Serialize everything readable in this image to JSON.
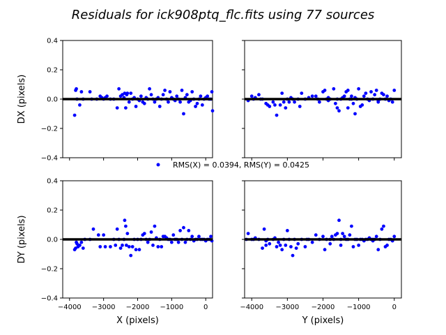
{
  "figure": {
    "title": "Residuals for ick908ptq_flc.fits using 77 sources",
    "legend_label": "RMS(X) = 0.0394, RMS(Y) = 0.0425",
    "marker_color": "#0000ff",
    "zero_line_color": "#000000"
  },
  "chart_data": [
    {
      "type": "scatter",
      "panel": "top-left",
      "xlabel": "",
      "ylabel": "DX (pixels)",
      "xlim": [
        -4200,
        200
      ],
      "ylim": [
        -0.4,
        0.4
      ],
      "xticks": [
        -4000,
        -3000,
        -2000,
        -1000,
        0
      ],
      "xtick_labels": [
        "",
        "",
        "",
        "",
        ""
      ],
      "yticks": [
        -0.4,
        -0.2,
        0.0,
        0.2,
        0.4
      ],
      "ytick_labels": [
        "−0.4",
        "−0.2",
        "0.0",
        "0.2",
        "0.4"
      ],
      "x": [
        -3850,
        -3820,
        -3800,
        -3780,
        -3700,
        -3650,
        -3600,
        -3400,
        -3350,
        -3200,
        -3100,
        -3050,
        -3000,
        -2950,
        -2900,
        -2800,
        -2700,
        -2600,
        -2550,
        -2500,
        -2450,
        -2400,
        -2380,
        -2350,
        -2320,
        -2300,
        -2250,
        -2200,
        -2150,
        -2100,
        -2050,
        -2000,
        -1950,
        -1900,
        -1850,
        -1800,
        -1750,
        -1700,
        -1650,
        -1600,
        -1550,
        -1500,
        -1450,
        -1400,
        -1350,
        -1300,
        -1250,
        -1200,
        -1150,
        -1100,
        -1050,
        -1000,
        -950,
        -900,
        -850,
        -800,
        -750,
        -700,
        -650,
        -600,
        -550,
        -500,
        -450,
        -400,
        -350,
        -300,
        -250,
        -200,
        -150,
        -100,
        -50,
        0,
        50,
        100,
        150,
        180,
        200
      ],
      "y": [
        -0.11,
        0.06,
        0.07,
        0.0,
        -0.04,
        0.05,
        0.0,
        0.05,
        0.0,
        0.0,
        0.02,
        0.01,
        0.0,
        0.01,
        0.02,
        0.0,
        0.0,
        -0.06,
        0.07,
        0.02,
        0.03,
        0.01,
        0.04,
        -0.06,
        0.03,
        0.04,
        -0.02,
        0.04,
        0.0,
        0.01,
        -0.05,
        0.0,
        -0.01,
        0.02,
        -0.02,
        -0.03,
        0.01,
        0.0,
        0.07,
        0.03,
        0.0,
        -0.02,
        0.0,
        0.01,
        -0.05,
        0.0,
        0.03,
        0.06,
        0.0,
        -0.02,
        0.05,
        0.01,
        0.0,
        -0.01,
        0.02,
        0.0,
        -0.02,
        0.06,
        -0.1,
        0.01,
        0.03,
        -0.02,
        -0.01,
        0.05,
        0.0,
        -0.05,
        -0.03,
        0.0,
        0.02,
        -0.04,
        0.0,
        0.01,
        0.02,
        0.0,
        0.0,
        0.05,
        -0.08
      ]
    },
    {
      "type": "scatter",
      "panel": "top-right",
      "xlabel": "",
      "ylabel": "",
      "xlim": [
        -4200,
        200
      ],
      "ylim": [
        -0.4,
        0.4
      ],
      "xticks": [
        -4000,
        -3000,
        -2000,
        -1000,
        0
      ],
      "xtick_labels": [
        "",
        "",
        "",
        "",
        ""
      ],
      "yticks": [
        -0.4,
        -0.2,
        0.0,
        0.2,
        0.4
      ],
      "ytick_labels": [
        "",
        "",
        "",
        "",
        ""
      ],
      "x": [
        -4100,
        -4000,
        -3950,
        -3900,
        -3800,
        -3750,
        -3600,
        -3550,
        -3500,
        -3400,
        -3300,
        -3200,
        -3150,
        -3100,
        -3050,
        -3000,
        -2950,
        -2900,
        -2850,
        -2800,
        -2700,
        -2600,
        -2500,
        -2400,
        -2300,
        -2200,
        -2100,
        -2000,
        -1950,
        -1900,
        -1850,
        -1800,
        -1700,
        -1650,
        -1600,
        -1550,
        -1500,
        -1450,
        -1400,
        -1350,
        -1300,
        -1250,
        -1200,
        -1150,
        -1100,
        -1050,
        -1000,
        -950,
        -900,
        -850,
        -800,
        -750,
        -700,
        -650,
        -600,
        -550,
        -500,
        -450,
        -400,
        -350,
        -300,
        -250,
        -200,
        -150,
        -100,
        -50,
        0,
        -1300,
        -2150,
        -1850,
        -2650,
        -3700,
        -3350,
        -1600,
        -450,
        -1100,
        -1200
      ],
      "y": [
        -0.01,
        0.02,
        0.0,
        0.01,
        0.03,
        0.0,
        -0.03,
        -0.04,
        -0.05,
        -0.02,
        -0.11,
        -0.04,
        0.04,
        -0.02,
        -0.06,
        0.0,
        -0.02,
        0.01,
        0.0,
        -0.02,
        0.0,
        0.04,
        0.0,
        0.01,
        0.02,
        0.02,
        -0.02,
        0.05,
        0.06,
        0.0,
        -0.01,
        0.0,
        0.07,
        -0.03,
        -0.06,
        -0.08,
        0.0,
        0.01,
        0.02,
        0.05,
        0.06,
        0.0,
        0.02,
        -0.03,
        -0.1,
        0.0,
        0.07,
        -0.05,
        -0.04,
        0.02,
        0.04,
        0.0,
        -0.01,
        0.05,
        0.0,
        0.03,
        0.06,
        -0.01,
        0.0,
        0.04,
        0.03,
        0.0,
        0.02,
        -0.01,
        0.0,
        -0.02,
        0.06,
        -0.06,
        0.0,
        0.01,
        -0.05,
        0.0,
        -0.04,
        0.0,
        -0.02,
        0.01,
        0.0
      ]
    },
    {
      "type": "scatter",
      "panel": "bottom-left",
      "xlabel": "X (pixels)",
      "ylabel": "DY (pixels)",
      "xlim": [
        -4200,
        200
      ],
      "ylim": [
        -0.4,
        0.4
      ],
      "xticks": [
        -4000,
        -3000,
        -2000,
        -1000,
        0
      ],
      "xtick_labels": [
        "−4000",
        "−3000",
        "−2000",
        "−1000",
        "0"
      ],
      "yticks": [
        -0.4,
        -0.2,
        0.0,
        0.2,
        0.4
      ],
      "ytick_labels": [
        "−0.4",
        "−0.2",
        "0.0",
        "0.2",
        "0.4"
      ],
      "x": [
        -3850,
        -3820,
        -3800,
        -3780,
        -3750,
        -3700,
        -3650,
        -3600,
        -3550,
        -3400,
        -3300,
        -3150,
        -3100,
        -3000,
        -2950,
        -2800,
        -2700,
        -2650,
        -2600,
        -2550,
        -2500,
        -2450,
        -2400,
        -2380,
        -2350,
        -2330,
        -2300,
        -2250,
        -2200,
        -2150,
        -2100,
        -2050,
        -2000,
        -1950,
        -1900,
        -1850,
        -1800,
        -1750,
        -1700,
        -1650,
        -1600,
        -1550,
        -1500,
        -1450,
        -1400,
        -1350,
        -1300,
        -1250,
        -1200,
        -1150,
        -1100,
        -1050,
        -1000,
        -950,
        -900,
        -850,
        -800,
        -750,
        -700,
        -650,
        -600,
        -550,
        -500,
        -450,
        -400,
        -350,
        -300,
        -250,
        -200,
        -150,
        -100,
        -50,
        0,
        50,
        100,
        150,
        180
      ],
      "y": [
        -0.07,
        -0.06,
        -0.02,
        -0.03,
        -0.05,
        -0.04,
        -0.02,
        -0.06,
        0.0,
        0.0,
        0.07,
        0.03,
        -0.05,
        0.03,
        -0.05,
        -0.05,
        0.0,
        -0.04,
        0.07,
        0.0,
        -0.06,
        -0.04,
        0.0,
        0.13,
        0.09,
        -0.04,
        0.04,
        -0.05,
        -0.11,
        -0.05,
        0.0,
        -0.07,
        0.0,
        -0.07,
        0.0,
        0.03,
        0.04,
        0.0,
        -0.02,
        0.0,
        0.05,
        -0.04,
        0.09,
        0.01,
        -0.05,
        0.0,
        -0.05,
        0.02,
        0.02,
        0.01,
        0.0,
        0.0,
        -0.02,
        0.03,
        0.0,
        0.0,
        -0.02,
        0.06,
        0.0,
        0.08,
        -0.02,
        0.0,
        0.06,
        0.0,
        0.02,
        -0.01,
        0.0,
        0.0,
        0.02,
        0.0,
        0.0,
        0.0,
        -0.01,
        0.0,
        0.0,
        0.02,
        -0.01
      ]
    },
    {
      "type": "scatter",
      "panel": "bottom-right",
      "xlabel": "Y (pixels)",
      "ylabel": "",
      "xlim": [
        -4200,
        200
      ],
      "ylim": [
        -0.4,
        0.4
      ],
      "xticks": [
        -4000,
        -3000,
        -2000,
        -1000,
        0
      ],
      "xtick_labels": [
        "−4000",
        "−3000",
        "−2000",
        "−1000",
        "0"
      ],
      "yticks": [
        -0.4,
        -0.2,
        0.0,
        0.2,
        0.4
      ],
      "ytick_labels": [
        "",
        "",
        "",
        "",
        ""
      ],
      "x": [
        -4150,
        -4100,
        -4000,
        -3950,
        -3900,
        -3800,
        -3700,
        -3650,
        -3600,
        -3550,
        -3500,
        -3400,
        -3350,
        -3300,
        -3200,
        -3150,
        -3100,
        -3050,
        -3000,
        -2950,
        -2900,
        -2850,
        -2800,
        -2750,
        -2700,
        -2600,
        -2500,
        -2400,
        -2300,
        -2200,
        -2100,
        -2000,
        -1950,
        -1900,
        -1800,
        -1750,
        -1700,
        -1650,
        -1600,
        -1550,
        -1500,
        -1450,
        -1400,
        -1350,
        -1300,
        -1250,
        -1200,
        -1150,
        -1100,
        -1050,
        -1000,
        -950,
        -900,
        -850,
        -800,
        -750,
        -700,
        -650,
        -600,
        -550,
        -500,
        -450,
        -400,
        -350,
        -300,
        -250,
        -200,
        -150,
        -100,
        -50,
        0,
        -1500,
        -1800,
        -3250,
        -3600,
        -2450,
        -600
      ],
      "y": [
        0.0,
        0.04,
        0.0,
        0.0,
        0.01,
        0.0,
        -0.06,
        0.07,
        -0.04,
        0.0,
        -0.03,
        0.0,
        0.01,
        -0.05,
        -0.04,
        -0.07,
        0.0,
        -0.04,
        0.06,
        0.0,
        -0.05,
        -0.11,
        0.0,
        -0.06,
        -0.03,
        0.0,
        -0.05,
        0.0,
        -0.02,
        0.03,
        0.0,
        0.02,
        -0.07,
        0.0,
        0.0,
        0.02,
        0.0,
        0.03,
        0.04,
        0.13,
        -0.04,
        0.04,
        0.02,
        0.0,
        0.0,
        0.03,
        0.09,
        -0.05,
        0.0,
        0.0,
        -0.04,
        0.0,
        0.0,
        -0.01,
        0.0,
        0.0,
        0.01,
        0.0,
        -0.01,
        0.0,
        0.02,
        -0.07,
        0.0,
        0.07,
        0.09,
        -0.05,
        -0.04,
        0.0,
        0.0,
        -0.01,
        0.02,
        0.0,
        -0.03,
        -0.02,
        -0.01,
        0.0,
        0.0
      ]
    }
  ]
}
